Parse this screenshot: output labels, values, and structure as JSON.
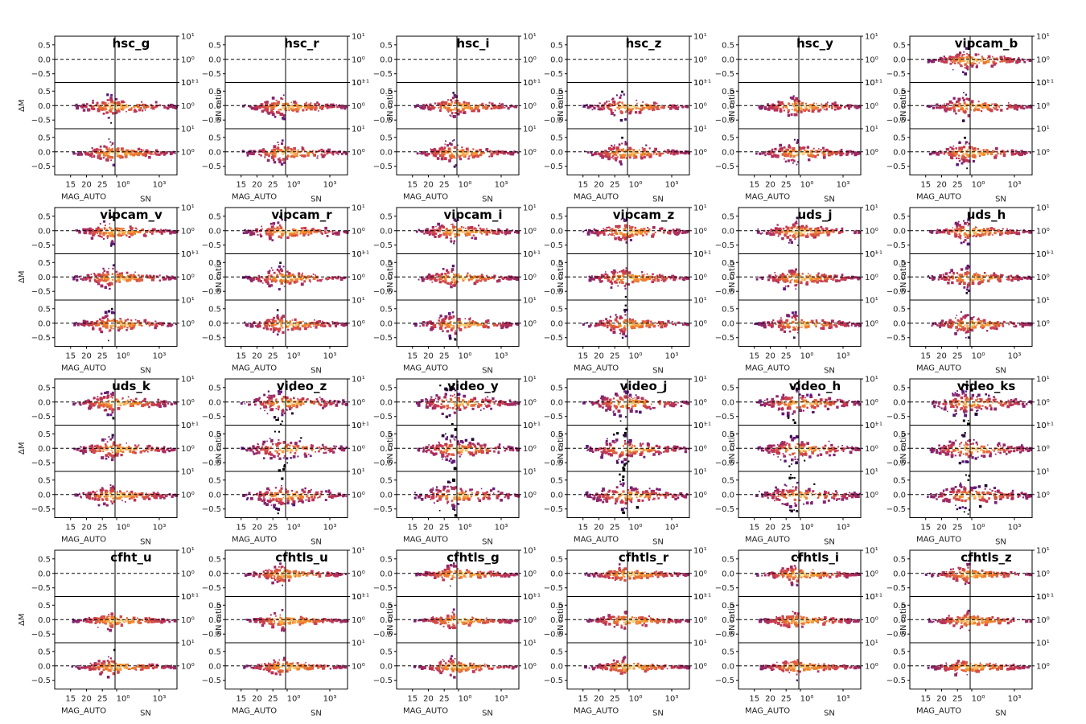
{
  "figure": {
    "title": ""
  },
  "colors": {
    "dense": "#fcfdbf",
    "mid": "#e8573a",
    "low": "#5e177f",
    "sparse": "#000004",
    "background": "#ffffff"
  },
  "chart_data": {
    "type": "heatmap",
    "description_rows": 4,
    "description_cols": 6,
    "shared_axes": {
      "ylabel_left": "ΔM",
      "ylabel_right": "SN ratio",
      "xlabel_left": "MAG_AUTO",
      "xlabel_right": "SN",
      "ylim_left": [
        -0.8,
        0.8
      ],
      "yticks_left": [
        "0.5",
        "0.0",
        "−0.5"
      ],
      "ytick_values_left": [
        0.5,
        0.0,
        -0.5
      ],
      "xticks_left": [
        "15",
        "20",
        "25"
      ],
      "xtick_values_left": [
        15,
        20,
        25
      ],
      "xlim_left": [
        10,
        29
      ],
      "xticks_right": [
        "10⁰",
        "10³"
      ],
      "yticks_right": [
        "10¹",
        "10⁰",
        "10⁻¹"
      ],
      "reference_line_y": 0.0
    },
    "panels": [
      {
        "name": "hsc_g",
        "ylabel_left": "ΔM",
        "ylabel_right": ""
      },
      {
        "name": "hsc_r",
        "ylabel_left": "",
        "ylabel_right": "SN ratio"
      },
      {
        "name": "hsc_i",
        "ylabel_left": "",
        "ylabel_right": "SN ratio"
      },
      {
        "name": "hsc_z",
        "ylabel_left": "",
        "ylabel_right": "SN ratio"
      },
      {
        "name": "hsc_y",
        "ylabel_left": "",
        "ylabel_right": "SN ratio"
      },
      {
        "name": "vipcam_b",
        "ylabel_left": "",
        "ylabel_right": "SN ratio"
      },
      {
        "name": "vipcam_v",
        "ylabel_left": "ΔM",
        "ylabel_right": ""
      },
      {
        "name": "vipcam_r",
        "ylabel_left": "",
        "ylabel_right": "SN ratio"
      },
      {
        "name": "vipcam_i",
        "ylabel_left": "",
        "ylabel_right": "SN ratio"
      },
      {
        "name": "vipcam_z",
        "ylabel_left": "",
        "ylabel_right": "SN ratio"
      },
      {
        "name": "uds_j",
        "ylabel_left": "",
        "ylabel_right": "SN ratio"
      },
      {
        "name": "uds_h",
        "ylabel_left": "",
        "ylabel_right": "SN ratio"
      },
      {
        "name": "uds_k",
        "ylabel_left": "ΔM",
        "ylabel_right": ""
      },
      {
        "name": "video_z",
        "ylabel_left": "",
        "ylabel_right": "SN ratio"
      },
      {
        "name": "video_y",
        "ylabel_left": "",
        "ylabel_right": "SN ratio"
      },
      {
        "name": "video_j",
        "ylabel_left": "",
        "ylabel_right": "SN ratio"
      },
      {
        "name": "video_h",
        "ylabel_left": "",
        "ylabel_right": "SN ratio"
      },
      {
        "name": "video_ks",
        "ylabel_left": "",
        "ylabel_right": "SN ratio"
      },
      {
        "name": "cfht_u",
        "ylabel_left": "ΔM",
        "ylabel_right": ""
      },
      {
        "name": "cfhtls_u",
        "ylabel_left": "",
        "ylabel_right": "SN ratio"
      },
      {
        "name": "cfhtls_g",
        "ylabel_left": "",
        "ylabel_right": "SN ratio"
      },
      {
        "name": "cfhtls_r",
        "ylabel_left": "",
        "ylabel_right": "SN ratio"
      },
      {
        "name": "cfhtls_i",
        "ylabel_left": "",
        "ylabel_right": "SN ratio"
      },
      {
        "name": "cfhtls_z",
        "ylabel_left": "",
        "ylabel_right": "SN ratio"
      }
    ]
  }
}
